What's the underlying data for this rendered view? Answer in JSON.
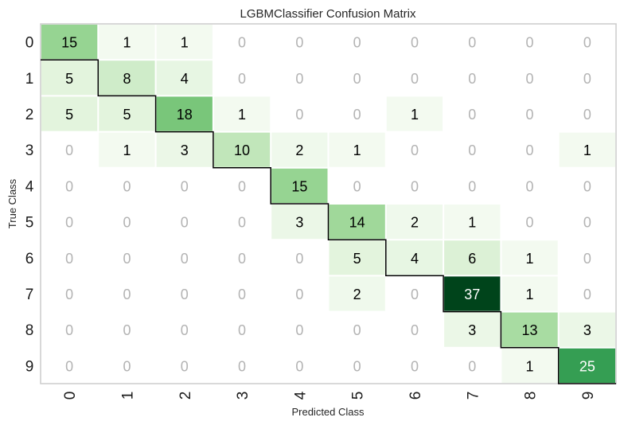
{
  "chart_data": {
    "type": "heatmap",
    "title": "LGBMClassifier Confusion Matrix",
    "xlabel": "Predicted Class",
    "ylabel": "True Class",
    "x_categories": [
      "0",
      "1",
      "2",
      "3",
      "4",
      "5",
      "6",
      "7",
      "8",
      "9"
    ],
    "y_categories": [
      "0",
      "1",
      "2",
      "3",
      "4",
      "5",
      "6",
      "7",
      "8",
      "9"
    ],
    "values": [
      [
        15,
        1,
        1,
        0,
        0,
        0,
        0,
        0,
        0,
        0
      ],
      [
        5,
        8,
        4,
        0,
        0,
        0,
        0,
        0,
        0,
        0
      ],
      [
        5,
        5,
        18,
        1,
        0,
        0,
        1,
        0,
        0,
        0
      ],
      [
        0,
        1,
        3,
        10,
        2,
        1,
        0,
        0,
        0,
        1
      ],
      [
        0,
        0,
        0,
        0,
        15,
        0,
        0,
        0,
        0,
        0
      ],
      [
        0,
        0,
        0,
        0,
        3,
        14,
        2,
        1,
        0,
        0
      ],
      [
        0,
        0,
        0,
        0,
        0,
        5,
        4,
        6,
        1,
        0
      ],
      [
        0,
        0,
        0,
        0,
        0,
        2,
        0,
        37,
        1,
        0
      ],
      [
        0,
        0,
        0,
        0,
        0,
        0,
        0,
        3,
        13,
        3
      ],
      [
        0,
        0,
        0,
        0,
        0,
        0,
        0,
        0,
        1,
        25
      ]
    ],
    "colormap": "Greens",
    "zero_label_color": "#b3b3b3",
    "label_color_dark": "#000000",
    "label_color_light": "#ffffff",
    "diagonal_boundary_color": "#000000",
    "grid": false
  }
}
